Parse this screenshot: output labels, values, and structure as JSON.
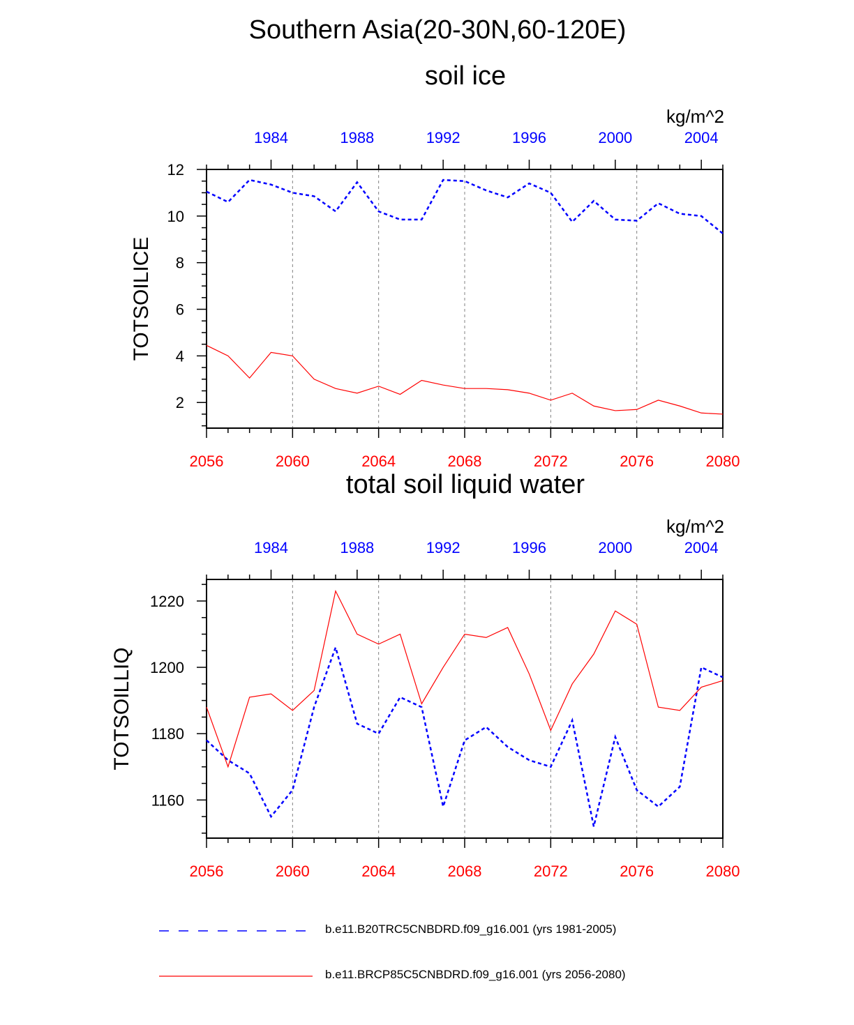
{
  "title": "Southern Asia(20-30N,60-120E)",
  "colors": {
    "historical": "#0000ff",
    "future": "#ff0000",
    "axis": "#000000",
    "grid": "#808080"
  },
  "legend": {
    "historical_label": "b.e11.B20TRC5CNBDRD.f09_g16.001 (yrs 1981-2005)",
    "future_label": "b.e11.BRCP85C5CNBDRD.f09_g16.001 (yrs 2056-2080)"
  },
  "chart_data": [
    {
      "type": "line",
      "title": "soil ice",
      "units": "kg/m^2",
      "ylabel": "TOTSOILICE",
      "ylim": [
        0.9,
        12
      ],
      "yticks": [
        2,
        4,
        6,
        8,
        10,
        12
      ],
      "x_bottom": {
        "range": [
          2056,
          2080
        ],
        "ticks": [
          "2056",
          "2060",
          "2064",
          "2068",
          "2072",
          "2076",
          "2080"
        ]
      },
      "x_top": {
        "ticks": [
          "1984",
          "1988",
          "1992",
          "1996",
          "2000",
          "2004"
        ]
      },
      "series": [
        {
          "name": "b.e11.B20TRC5CNBDRD.f09_g16.001 (yrs 1981-2005)",
          "style": "dashed",
          "color": "#0000ff",
          "values": [
            11.05,
            10.6,
            11.55,
            11.35,
            11.0,
            10.85,
            10.2,
            11.45,
            10.2,
            9.85,
            9.85,
            11.55,
            11.5,
            11.1,
            10.8,
            11.4,
            11.0,
            9.75,
            10.65,
            9.85,
            9.8,
            10.55,
            10.1,
            10.0,
            9.25
          ]
        },
        {
          "name": "b.e11.BRCP85C5CNBDRD.f09_g16.001 (yrs 2056-2080)",
          "style": "solid",
          "color": "#ff0000",
          "values": [
            4.45,
            4.0,
            3.05,
            4.15,
            4.0,
            3.0,
            2.6,
            2.4,
            2.7,
            2.35,
            2.95,
            2.75,
            2.6,
            2.6,
            2.55,
            2.4,
            2.1,
            2.4,
            1.85,
            1.65,
            1.7,
            2.1,
            1.85,
            1.55,
            1.5
          ]
        }
      ]
    },
    {
      "type": "line",
      "title": "total soil liquid water",
      "units": "kg/m^2",
      "ylabel": "TOTSOILLIQ",
      "ylim": [
        1148.5,
        1226.5
      ],
      "yticks": [
        1160,
        1180,
        1200,
        1220
      ],
      "x_bottom": {
        "range": [
          2056,
          2080
        ],
        "ticks": [
          "2056",
          "2060",
          "2064",
          "2068",
          "2072",
          "2076",
          "2080"
        ]
      },
      "x_top": {
        "ticks": [
          "1984",
          "1988",
          "1992",
          "1996",
          "2000",
          "2004"
        ]
      },
      "series": [
        {
          "name": "b.e11.B20TRC5CNBDRD.f09_g16.001 (yrs 1981-2005)",
          "style": "dashed",
          "color": "#0000ff",
          "values": [
            1178,
            1172,
            1168,
            1155,
            1163,
            1188,
            1206,
            1183,
            1180,
            1191,
            1188,
            1158,
            1178,
            1182,
            1176,
            1172,
            1170,
            1184,
            1152,
            1179,
            1163,
            1158,
            1164,
            1200,
            1197
          ]
        },
        {
          "name": "b.e11.BRCP85C5CNBDRD.f09_g16.001 (yrs 2056-2080)",
          "style": "solid",
          "color": "#ff0000",
          "values": [
            1188,
            1170,
            1191,
            1192,
            1187,
            1193,
            1223,
            1210,
            1207,
            1210,
            1189,
            1200,
            1210,
            1209,
            1212,
            1198,
            1181,
            1195,
            1204,
            1217,
            1213,
            1188,
            1187,
            1194,
            1196
          ]
        }
      ]
    }
  ]
}
